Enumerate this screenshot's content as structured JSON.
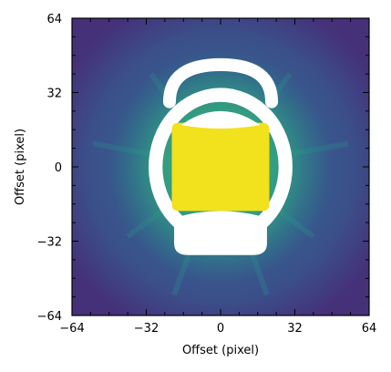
{
  "chart_data": {
    "type": "heatmap",
    "title": "",
    "xlabel": "Offset (pixel)",
    "ylabel": "Offset (pixel)",
    "xlim": [
      -64,
      64
    ],
    "ylim": [
      -64,
      64
    ],
    "x_ticks": [
      -64,
      -32,
      0,
      32,
      64
    ],
    "y_ticks": [
      -64,
      -32,
      0,
      32,
      64
    ],
    "x_tick_labels": [
      "−64",
      "−32",
      "0",
      "32",
      "64"
    ],
    "y_tick_labels": [
      "−64",
      "−32",
      "0",
      "32",
      "64"
    ],
    "colormap": "viridis",
    "grid": false,
    "legend": "none",
    "features": [
      {
        "kind": "bright core",
        "center": [
          0,
          0
        ],
        "half_width": 21,
        "half_height": 19,
        "color": "#f2e11d"
      },
      {
        "kind": "white ring mask",
        "center": [
          0,
          0
        ],
        "rx": 31,
        "ry": 34
      },
      {
        "kind": "white top arc",
        "y_range": [
          28,
          44
        ],
        "x_range": [
          -22,
          22
        ]
      },
      {
        "kind": "white top segment",
        "y_range": [
          18,
          24
        ],
        "x_range": [
          -17,
          17
        ]
      },
      {
        "kind": "white bottom lobe",
        "y_range": [
          -38,
          -22
        ],
        "x_range": [
          -20,
          20
        ]
      }
    ]
  }
}
